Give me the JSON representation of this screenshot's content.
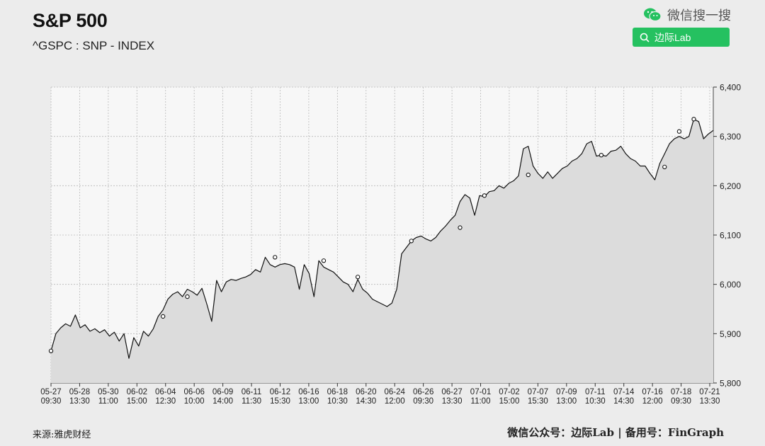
{
  "header": {
    "title": "S&P 500",
    "subtitle": "^GSPC : SNP - INDEX"
  },
  "wechat": {
    "search_label": "微信搜一搜",
    "search_button": "边际Lab",
    "brand_color": "#25c160"
  },
  "footer": {
    "source": "来源:雅虎财经",
    "credits": "微信公众号：边际Lab  |  备用号：FinGraph"
  },
  "chart_data": {
    "type": "area",
    "title": "S&P 500",
    "ylim": [
      5800,
      6400
    ],
    "yticks": [
      5800,
      5900,
      6000,
      6100,
      6200,
      6300,
      6400
    ],
    "ytick_labels": [
      "5,800",
      "5,900",
      "6,000",
      "6,100",
      "6,200",
      "6,300",
      "6,400"
    ],
    "grid": true,
    "x_ticks": [
      {
        "date": "05-27",
        "time": "09:30"
      },
      {
        "date": "05-28",
        "time": "13:30"
      },
      {
        "date": "05-30",
        "time": "11:00"
      },
      {
        "date": "06-02",
        "time": "15:00"
      },
      {
        "date": "06-04",
        "time": "12:30"
      },
      {
        "date": "06-06",
        "time": "10:00"
      },
      {
        "date": "06-09",
        "time": "14:00"
      },
      {
        "date": "06-11",
        "time": "11:30"
      },
      {
        "date": "06-12",
        "time": "15:30"
      },
      {
        "date": "06-16",
        "time": "13:00"
      },
      {
        "date": "06-18",
        "time": "10:30"
      },
      {
        "date": "06-20",
        "time": "14:30"
      },
      {
        "date": "06-24",
        "time": "12:00"
      },
      {
        "date": "06-26",
        "time": "09:30"
      },
      {
        "date": "06-27",
        "time": "13:30"
      },
      {
        "date": "07-01",
        "time": "11:00"
      },
      {
        "date": "07-02",
        "time": "15:00"
      },
      {
        "date": "07-07",
        "time": "15:30"
      },
      {
        "date": "07-09",
        "time": "13:00"
      },
      {
        "date": "07-11",
        "time": "10:30"
      },
      {
        "date": "07-14",
        "time": "14:30"
      },
      {
        "date": "07-16",
        "time": "12:00"
      },
      {
        "date": "07-18",
        "time": "09:30"
      },
      {
        "date": "07-21",
        "time": "13:30"
      }
    ],
    "series": [
      {
        "values": [
          5865,
          5900,
          5912,
          5920,
          5915,
          5938,
          5912,
          5918,
          5905,
          5910,
          5902,
          5908,
          5895,
          5903,
          5885,
          5900,
          5850,
          5892,
          5875,
          5905,
          5895,
          5910,
          5935,
          5948,
          5970,
          5980,
          5985,
          5975,
          5990,
          5985,
          5978,
          5992,
          5960,
          5925,
          6008,
          5985,
          6005,
          6010,
          6008,
          6012,
          6015,
          6020,
          6030,
          6025,
          6055,
          6040,
          6035,
          6040,
          6042,
          6040,
          6035,
          5990,
          6040,
          6022,
          5975,
          6048,
          6035,
          6030,
          6025,
          6015,
          6005,
          6000,
          5985,
          6010,
          5990,
          5982,
          5970,
          5965,
          5960,
          5955,
          5962,
          5990,
          6062,
          6075,
          6088,
          6095,
          6098,
          6092,
          6088,
          6095,
          6108,
          6118,
          6130,
          6140,
          6168,
          6182,
          6175,
          6140,
          6180,
          6178,
          6188,
          6190,
          6200,
          6195,
          6205,
          6210,
          6220,
          6275,
          6280,
          6240,
          6225,
          6215,
          6228,
          6215,
          6225,
          6235,
          6240,
          6250,
          6255,
          6265,
          6285,
          6290,
          6260,
          6262,
          6260,
          6270,
          6272,
          6280,
          6265,
          6255,
          6250,
          6240,
          6240,
          6225,
          6212,
          6245,
          6265,
          6285,
          6295,
          6300,
          6295,
          6300,
          6335,
          6330,
          6295,
          6305,
          6312
        ]
      }
    ],
    "markers": [
      {
        "x": 0,
        "y": 5865
      },
      {
        "x": 23,
        "y": 5935
      },
      {
        "x": 28,
        "y": 5975
      },
      {
        "x": 46,
        "y": 6055
      },
      {
        "x": 56,
        "y": 6048
      },
      {
        "x": 63,
        "y": 6015
      },
      {
        "x": 74,
        "y": 6088
      },
      {
        "x": 84,
        "y": 6115
      },
      {
        "x": 89,
        "y": 6180
      },
      {
        "x": 98,
        "y": 6222
      },
      {
        "x": 113,
        "y": 6262
      },
      {
        "x": 126,
        "y": 6238
      },
      {
        "x": 129,
        "y": 6310
      },
      {
        "x": 132,
        "y": 6335
      }
    ],
    "colors": {
      "line": "#111111",
      "fill": "#dcdcdc",
      "grid": "#b9b9b9",
      "background": "#f7f7f7"
    }
  }
}
